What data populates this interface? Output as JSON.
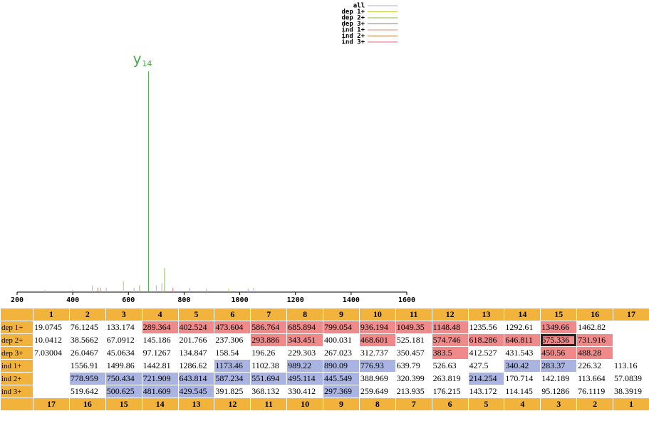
{
  "spectrum": {
    "xlim": [
      200,
      1600
    ],
    "xticks": [
      200,
      400,
      600,
      800,
      1000,
      1200,
      1400,
      1600
    ],
    "peaks": [
      {
        "mz": 672,
        "intensity": 100,
        "color": "#44aa44"
      },
      {
        "mz": 730,
        "intensity": 11,
        "color": "#88bb33"
      },
      {
        "mz": 582,
        "intensity": 5,
        "color": "#cccc44"
      },
      {
        "mz": 720,
        "intensity": 4,
        "color": "#aaaadd"
      },
      {
        "mz": 470,
        "intensity": 3,
        "color": "#cccc44"
      },
      {
        "mz": 490,
        "intensity": 2,
        "color": "#bb7744"
      },
      {
        "mz": 500,
        "intensity": 2,
        "color": "#ee8866"
      },
      {
        "mz": 520,
        "intensity": 2,
        "color": "#aaaadd"
      },
      {
        "mz": 620,
        "intensity": 2,
        "color": "#aaaadd"
      },
      {
        "mz": 640,
        "intensity": 3,
        "color": "#88bb33"
      },
      {
        "mz": 700,
        "intensity": 3,
        "color": "#aaaadd"
      },
      {
        "mz": 760,
        "intensity": 2,
        "color": "#ee6677"
      },
      {
        "mz": 820,
        "intensity": 2,
        "color": "#aaaadd"
      },
      {
        "mz": 880,
        "intensity": 1.5,
        "color": "#aaaadd"
      },
      {
        "mz": 960,
        "intensity": 1.5,
        "color": "#cccc44"
      },
      {
        "mz": 1030,
        "intensity": 1.5,
        "color": "#aaaadd"
      },
      {
        "mz": 1050,
        "intensity": 2,
        "color": "#aaaadd"
      },
      {
        "mz": 300,
        "intensity": 1,
        "color": "#aaaadd"
      },
      {
        "mz": 400,
        "intensity": 1,
        "color": "#aaaadd"
      }
    ],
    "annotation": {
      "label": "y",
      "sub": "14",
      "mz": 672,
      "color": "#44aa44"
    }
  },
  "legend": [
    {
      "name": "all",
      "color": "#aaaadd"
    },
    {
      "name": "dep 1+",
      "color": "#cccc44"
    },
    {
      "name": "dep 2+",
      "color": "#88bb33"
    },
    {
      "name": "dep 3+",
      "color": "#44aa44"
    },
    {
      "name": "ind 1+",
      "color": "#ee8866"
    },
    {
      "name": "ind 2+",
      "color": "#bb7744"
    },
    {
      "name": "ind 3+",
      "color": "#ee6677"
    }
  ],
  "table": {
    "header_color": "#f2b33d",
    "header": [
      "1",
      "2",
      "3",
      "4",
      "5",
      "6",
      "7",
      "8",
      "9",
      "10",
      "11",
      "12",
      "13",
      "14",
      "15",
      "16",
      "17"
    ],
    "footer": [
      "17",
      "16",
      "15",
      "14",
      "13",
      "12",
      "11",
      "10",
      "9",
      "8",
      "7",
      "6",
      "5",
      "4",
      "3",
      "2",
      "1"
    ],
    "selected": {
      "row": 1,
      "col": 14
    },
    "rows": [
      {
        "label": "dep 1+",
        "match_color": "#f08a8a",
        "matched": [
          3,
          4,
          5,
          6,
          7,
          8,
          9,
          10,
          11,
          14
        ],
        "values": [
          19.0745,
          76.1245,
          133.174,
          289.364,
          402.524,
          473.604,
          586.764,
          685.894,
          799.054,
          936.194,
          1049.35,
          1148.48,
          1235.56,
          1292.61,
          1349.66,
          1462.82,
          null
        ]
      },
      {
        "label": "dep 2+",
        "match_color": "#f08a8a",
        "matched": [
          6,
          7,
          9,
          11,
          12,
          13,
          14,
          15
        ],
        "values": [
          10.0412,
          38.5662,
          67.0912,
          145.186,
          201.766,
          237.306,
          293.886,
          343.451,
          400.031,
          468.601,
          525.181,
          574.746,
          618.286,
          646.811,
          675.336,
          731.916,
          null
        ]
      },
      {
        "label": "dep 3+",
        "match_color": "#f08a8a",
        "matched": [
          11,
          14,
          15
        ],
        "values": [
          7.03004,
          26.0467,
          45.0634,
          97.1267,
          134.847,
          158.54,
          196.26,
          229.303,
          267.023,
          312.737,
          350.457,
          383.5,
          412.527,
          431.543,
          450.56,
          488.28,
          null
        ]
      },
      {
        "label": "ind 1+",
        "match_color": "#aab4e2",
        "matched": [
          5,
          7,
          8,
          9,
          13,
          14
        ],
        "values": [
          null,
          1556.91,
          1499.86,
          1442.81,
          1286.62,
          1173.46,
          1102.38,
          989.22,
          890.09,
          776.93,
          639.79,
          526.63,
          427.5,
          340.42,
          283.37,
          226.32,
          113.16
        ]
      },
      {
        "label": "ind 2+",
        "match_color": "#aab4e2",
        "matched": [
          1,
          2,
          3,
          4,
          5,
          6,
          7,
          8,
          12
        ],
        "values": [
          null,
          778.959,
          750.434,
          721.909,
          643.814,
          587.234,
          551.694,
          495.114,
          445.549,
          388.969,
          320.399,
          263.819,
          214.254,
          170.714,
          142.189,
          113.664,
          57.0839
        ]
      },
      {
        "label": "ind 3+",
        "match_color": "#aab4e2",
        "matched": [
          2,
          3,
          4,
          8
        ],
        "values": [
          null,
          519.642,
          500.625,
          481.609,
          429.545,
          391.825,
          368.132,
          330.412,
          297.369,
          259.649,
          213.935,
          176.215,
          143.172,
          114.145,
          95.1286,
          76.1119,
          38.3919
        ]
      }
    ]
  }
}
